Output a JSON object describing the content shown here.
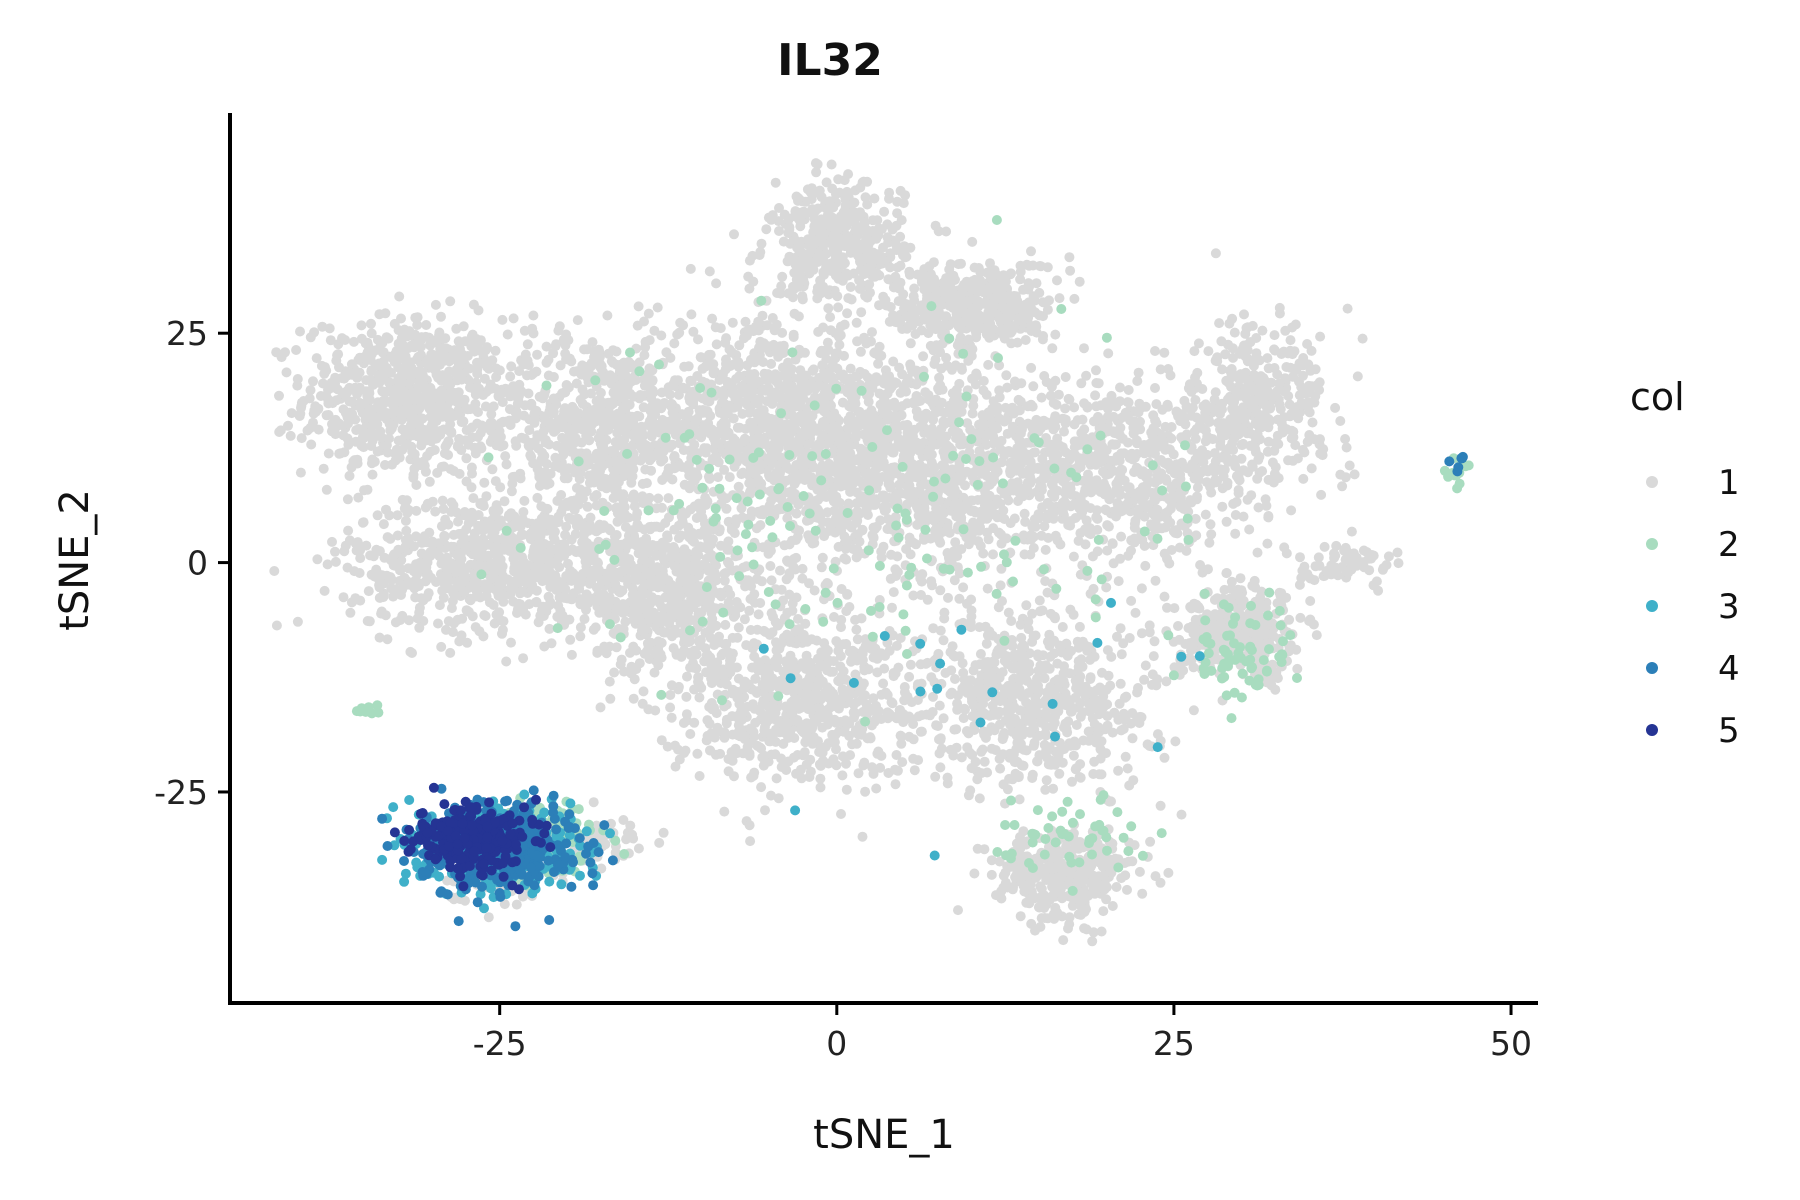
{
  "chart_data": {
    "type": "scatter",
    "title": "IL32",
    "xlabel": "tSNE_1",
    "ylabel": "tSNE_2",
    "xlim": [
      -45,
      52
    ],
    "ylim": [
      -48,
      49
    ],
    "x_ticks": [
      -25,
      0,
      25,
      50
    ],
    "y_ticks": [
      -25,
      0,
      25
    ],
    "x_tick_labels": [
      "-25",
      "0",
      "25",
      "50"
    ],
    "y_tick_labels": [
      "-25",
      "0",
      "25"
    ],
    "grid": false,
    "legend": {
      "title": "col",
      "placement": "right",
      "entries": [
        {
          "label": "1",
          "color": "#d9d9d9"
        },
        {
          "label": "2",
          "color": "#a8dcbf"
        },
        {
          "label": "3",
          "color": "#3fb0c9"
        },
        {
          "label": "4",
          "color": "#2c7fb8"
        },
        {
          "label": "5",
          "color": "#253494"
        }
      ]
    },
    "series": [
      {
        "legend_label": "1",
        "regions": [
          {
            "center": [
              -32,
              18
            ],
            "spread": [
              6,
              7
            ],
            "count": 700
          },
          {
            "center": [
              -18,
              15
            ],
            "spread": [
              7,
              8
            ],
            "count": 650
          },
          {
            "center": [
              -25,
              0
            ],
            "spread": [
              9,
              6
            ],
            "count": 800
          },
          {
            "center": [
              -12,
              -3
            ],
            "spread": [
              6,
              7
            ],
            "count": 600
          },
          {
            "center": [
              -5,
              15
            ],
            "spread": [
              8,
              9
            ],
            "count": 900
          },
          {
            "center": [
              0,
              35
            ],
            "spread": [
              4,
              5
            ],
            "count": 400
          },
          {
            "center": [
              5,
              10
            ],
            "spread": [
              9,
              11
            ],
            "count": 1000
          },
          {
            "center": [
              -3,
              -15
            ],
            "spread": [
              8,
              7
            ],
            "count": 700
          },
          {
            "center": [
              10,
              28
            ],
            "spread": [
              5,
              4
            ],
            "count": 400
          },
          {
            "center": [
              20,
              10
            ],
            "spread": [
              9,
              8
            ],
            "count": 800
          },
          {
            "center": [
              15,
              -15
            ],
            "spread": [
              7,
              8
            ],
            "count": 600
          },
          {
            "center": [
              17,
              -34
            ],
            "spread": [
              4,
              4
            ],
            "count": 350
          },
          {
            "center": [
              31,
              17
            ],
            "spread": [
              4,
              7
            ],
            "count": 350
          },
          {
            "center": [
              30,
              -8
            ],
            "spread": [
              4,
              4
            ],
            "count": 300
          },
          {
            "center": [
              38,
              0
            ],
            "spread": [
              3,
              2
            ],
            "count": 60
          },
          {
            "center": [
              -25,
              -33
            ],
            "spread": [
              4,
              3
            ],
            "count": 120
          },
          {
            "center": [
              -18,
              -30
            ],
            "spread": [
              3,
              2
            ],
            "count": 60
          }
        ]
      },
      {
        "legend_label": "2",
        "regions": [
          {
            "center": [
              2,
              5
            ],
            "spread": [
              20,
              16
            ],
            "count": 160
          },
          {
            "center": [
              30,
              -10
            ],
            "spread": [
              4,
              4
            ],
            "count": 70
          },
          {
            "center": [
              17,
              -30
            ],
            "spread": [
              4,
              4
            ],
            "count": 50
          },
          {
            "center": [
              -22,
              -30
            ],
            "spread": [
              4,
              3
            ],
            "count": 80
          },
          {
            "center": [
              46,
              10
            ],
            "spread": [
              1,
              1
            ],
            "count": 15
          },
          {
            "center": [
              -35,
              -16
            ],
            "spread": [
              1,
              1
            ],
            "count": 10
          }
        ]
      },
      {
        "legend_label": "3",
        "regions": [
          {
            "center": [
              -25,
              -31
            ],
            "spread": [
              4.5,
              3.5
            ],
            "count": 380
          },
          {
            "center": [
              10,
              -15
            ],
            "spread": [
              15,
              15
            ],
            "count": 20
          }
        ]
      },
      {
        "legend_label": "4",
        "regions": [
          {
            "center": [
              -25,
              -31
            ],
            "spread": [
              4.5,
              3.5
            ],
            "count": 420
          },
          {
            "center": [
              46,
              11
            ],
            "spread": [
              1,
              1
            ],
            "count": 6
          }
        ]
      },
      {
        "legend_label": "5",
        "regions": [
          {
            "center": [
              -27,
              -30
            ],
            "spread": [
              3.5,
              3
            ],
            "count": 260
          }
        ]
      }
    ]
  }
}
